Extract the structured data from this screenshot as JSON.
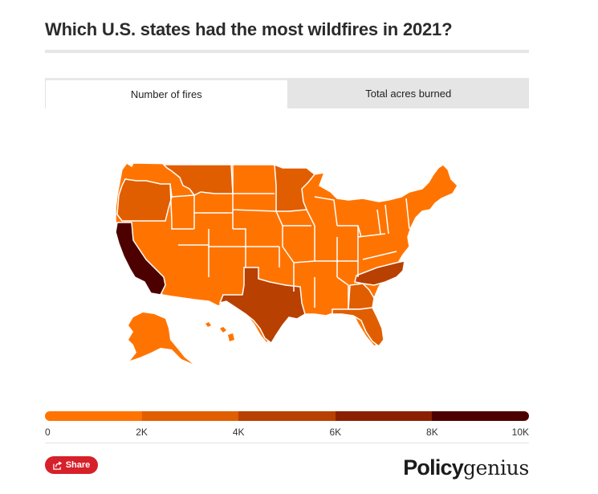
{
  "title": "Which U.S. states had the most wildfires in 2021?",
  "tabs": [
    {
      "label": "Number of fires",
      "active": true
    },
    {
      "label": "Total acres burned",
      "active": false
    }
  ],
  "colors": {
    "scale": [
      "#ff7400",
      "#e05e00",
      "#b84000",
      "#8a2000",
      "#4d0000"
    ],
    "state_border": "#ffffff",
    "share": "#d6202a"
  },
  "map": {
    "type": "choropleth",
    "metric": "Number of fires",
    "region": "United States",
    "class_by_state": {
      "California": 4,
      "Oregon": 1,
      "Montana": 1,
      "Minnesota": 1,
      "Texas": 2,
      "North Carolina": 2,
      "Georgia": 1,
      "Florida": 1,
      "South Carolina": 0
    },
    "default_class": 0
  },
  "legend": {
    "ticks": [
      "0",
      "2K",
      "4K",
      "6K",
      "8K",
      "10K"
    ]
  },
  "share": {
    "label": "Share",
    "icon": "share-icon"
  },
  "brand": {
    "bold": "Policy",
    "light": "genius"
  }
}
